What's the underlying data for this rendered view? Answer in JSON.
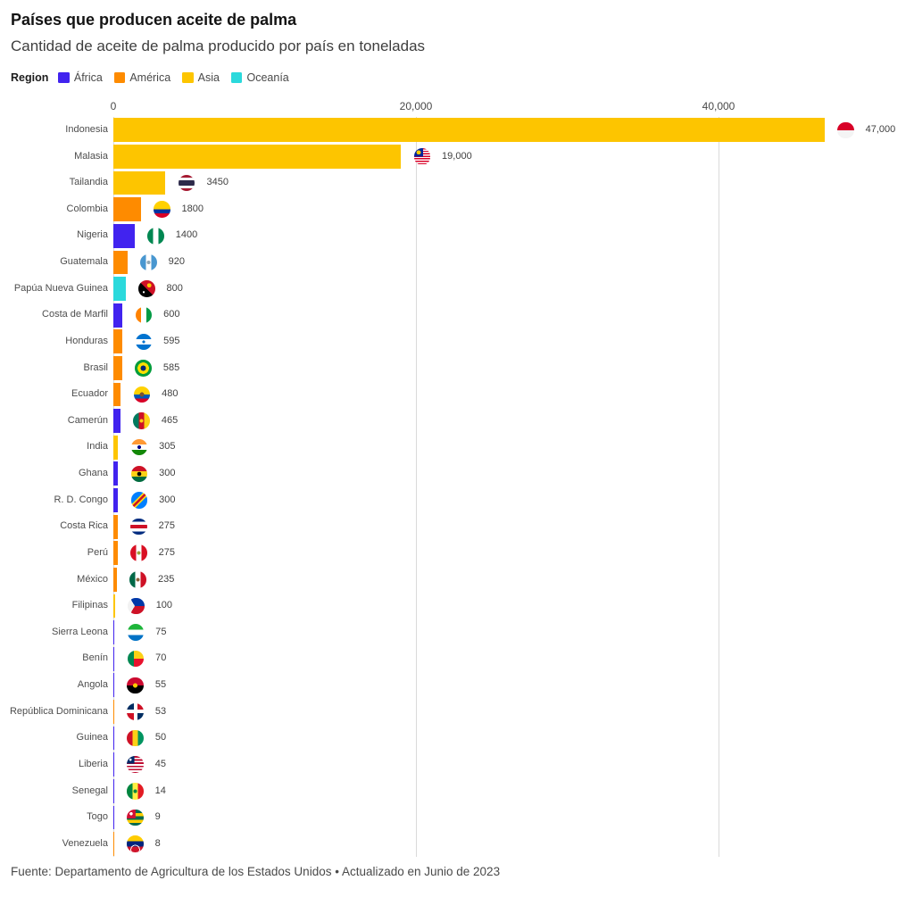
{
  "title": "Países que producen aceite de palma",
  "subtitle": "Cantidad de aceite de palma producido por país en toneladas",
  "legend": {
    "title": "Region",
    "items": [
      {
        "label": "África",
        "color": "#4123ef"
      },
      {
        "label": "América",
        "color": "#fe8b00"
      },
      {
        "label": "Asia",
        "color": "#fdc500"
      },
      {
        "label": "Oceanía",
        "color": "#2bd9dc"
      }
    ]
  },
  "chart_data": {
    "type": "bar",
    "orientation": "horizontal",
    "title": "Países que producen aceite de palma",
    "subtitle": "Cantidad de aceite de palma producido por país en toneladas",
    "value_unit": "toneladas",
    "legend_position": "top",
    "grid": "vertical",
    "x_axis": {
      "ticks": [
        "0",
        "20,000",
        "40,000"
      ],
      "tick_values": [
        0,
        20000,
        40000
      ],
      "max": 52000
    },
    "rows": [
      {
        "country": "Indonesia",
        "region": "Asia",
        "value": 47000,
        "value_label": "47,000",
        "flag": "indonesia"
      },
      {
        "country": "Malasia",
        "region": "Asia",
        "value": 19000,
        "value_label": "19,000",
        "flag": "malasia"
      },
      {
        "country": "Tailandia",
        "region": "Asia",
        "value": 3450,
        "value_label": "3450",
        "flag": "tailandia"
      },
      {
        "country": "Colombia",
        "region": "América",
        "value": 1800,
        "value_label": "1800",
        "flag": "colombia"
      },
      {
        "country": "Nigeria",
        "region": "África",
        "value": 1400,
        "value_label": "1400",
        "flag": "nigeria"
      },
      {
        "country": "Guatemala",
        "region": "América",
        "value": 920,
        "value_label": "920",
        "flag": "guatemala"
      },
      {
        "country": "Papúa Nueva Guinea",
        "region": "Oceanía",
        "value": 800,
        "value_label": "800",
        "flag": "papua-nueva-guinea"
      },
      {
        "country": "Costa de Marfil",
        "region": "África",
        "value": 600,
        "value_label": "600",
        "flag": "costa-de-marfil"
      },
      {
        "country": "Honduras",
        "region": "América",
        "value": 595,
        "value_label": "595",
        "flag": "honduras"
      },
      {
        "country": "Brasil",
        "region": "América",
        "value": 585,
        "value_label": "585",
        "flag": "brasil"
      },
      {
        "country": "Ecuador",
        "region": "América",
        "value": 480,
        "value_label": "480",
        "flag": "ecuador"
      },
      {
        "country": "Camerún",
        "region": "África",
        "value": 465,
        "value_label": "465",
        "flag": "camerun"
      },
      {
        "country": "India",
        "region": "Asia",
        "value": 305,
        "value_label": "305",
        "flag": "india"
      },
      {
        "country": "Ghana",
        "region": "África",
        "value": 300,
        "value_label": "300",
        "flag": "ghana"
      },
      {
        "country": "R. D. Congo",
        "region": "África",
        "value": 300,
        "value_label": "300",
        "flag": "rd-congo"
      },
      {
        "country": "Costa Rica",
        "region": "América",
        "value": 275,
        "value_label": "275",
        "flag": "costa-rica"
      },
      {
        "country": "Perú",
        "region": "América",
        "value": 275,
        "value_label": "275",
        "flag": "peru"
      },
      {
        "country": "México",
        "region": "América",
        "value": 235,
        "value_label": "235",
        "flag": "mexico"
      },
      {
        "country": "Filipinas",
        "region": "Asia",
        "value": 100,
        "value_label": "100",
        "flag": "filipinas"
      },
      {
        "country": "Sierra Leona",
        "region": "África",
        "value": 75,
        "value_label": "75",
        "flag": "sierra-leona"
      },
      {
        "country": "Benín",
        "region": "África",
        "value": 70,
        "value_label": "70",
        "flag": "benin"
      },
      {
        "country": "Angola",
        "region": "África",
        "value": 55,
        "value_label": "55",
        "flag": "angola"
      },
      {
        "country": "República Dominicana",
        "region": "América",
        "value": 53,
        "value_label": "53",
        "flag": "republica-dominicana"
      },
      {
        "country": "Guinea",
        "region": "África",
        "value": 50,
        "value_label": "50",
        "flag": "guinea"
      },
      {
        "country": "Liberia",
        "region": "África",
        "value": 45,
        "value_label": "45",
        "flag": "liberia"
      },
      {
        "country": "Senegal",
        "region": "África",
        "value": 14,
        "value_label": "14",
        "flag": "senegal"
      },
      {
        "country": "Togo",
        "region": "África",
        "value": 9,
        "value_label": "9",
        "flag": "togo"
      },
      {
        "country": "Venezuela",
        "region": "América",
        "value": 8,
        "value_label": "8",
        "flag": "venezuela"
      }
    ]
  },
  "footer": {
    "text": "Fuente: Departamento de Agricultura de los Estados Unidos • Actualizado en Junio de 2023"
  }
}
